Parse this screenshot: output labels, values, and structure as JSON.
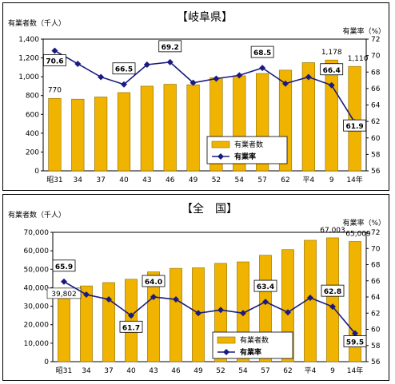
{
  "colors": {
    "bar": "#f0b400",
    "bar_edge": "#8a6a00",
    "line": "#1a1a80",
    "grid": "#000000"
  },
  "chart_data": [
    {
      "type": "bar",
      "title": "【岐阜県】",
      "ylabel": "有業者数（千人）",
      "y2label": "有業率（%）",
      "categories": [
        "昭31",
        "34",
        "37",
        "40",
        "43",
        "46",
        "49",
        "52",
        "54",
        "57",
        "62",
        "平4",
        "9",
        "14年"
      ],
      "ylim": [
        0,
        1400
      ],
      "yticks": [
        "0",
        "200",
        "400",
        "600",
        "800",
        "1,000",
        "1,200",
        "1,400"
      ],
      "y2lim": [
        56,
        72
      ],
      "y2ticks": [
        "56",
        "58",
        "60",
        "62",
        "64",
        "66",
        "68",
        "70",
        "72"
      ],
      "legend_position": "bottom-right",
      "series": [
        {
          "name": "有業者数",
          "type": "bar",
          "axis": "left",
          "values": [
            770,
            762,
            785,
            832,
            900,
            920,
            915,
            990,
            1010,
            1035,
            1070,
            1150,
            1178,
            1110
          ],
          "value_labels": [
            "770",
            "",
            "",
            "",
            "",
            "",
            "",
            "",
            "",
            "",
            "",
            "",
            "1,178",
            "1,110"
          ]
        },
        {
          "name": "有業率",
          "type": "line",
          "axis": "right",
          "values": [
            70.6,
            69.0,
            67.4,
            66.5,
            68.9,
            69.2,
            66.7,
            67.2,
            67.6,
            68.5,
            66.6,
            67.4,
            66.4,
            61.9
          ],
          "value_labels": [
            "70.6",
            "",
            "",
            "66.5",
            "",
            "69.2",
            "",
            "",
            "",
            "68.5",
            "",
            "",
            "66.4",
            "61.9"
          ]
        }
      ]
    },
    {
      "type": "bar",
      "title": "【全　国】",
      "ylabel": "有業者数（千人）",
      "y2label": "有業率（%）",
      "categories": [
        "昭31",
        "34",
        "37",
        "40",
        "43",
        "46",
        "49",
        "52",
        "54",
        "57",
        "62",
        "平4",
        "9",
        "14年"
      ],
      "ylim": [
        0,
        70000
      ],
      "yticks": [
        "0",
        "10,000",
        "20,000",
        "30,000",
        "40,000",
        "50,000",
        "60,000",
        "70,000"
      ],
      "y2lim": [
        56,
        72
      ],
      "y2ticks": [
        "56",
        "58",
        "60",
        "62",
        "64",
        "66",
        "68",
        "70",
        "72"
      ],
      "legend_position": "bottom-right",
      "series": [
        {
          "name": "有業者数",
          "type": "bar",
          "axis": "left",
          "values": [
            39802,
            41000,
            42800,
            44600,
            48600,
            50500,
            50800,
            53200,
            54000,
            57600,
            60600,
            65700,
            67003,
            65009
          ],
          "value_labels": [
            "39,802",
            "",
            "",
            "",
            "",
            "",
            "",
            "",
            "",
            "",
            "",
            "",
            "67,003",
            "65,009"
          ]
        },
        {
          "name": "有業率",
          "type": "line",
          "axis": "right",
          "values": [
            65.9,
            64.3,
            63.7,
            61.7,
            64.0,
            63.7,
            62.0,
            62.4,
            62.0,
            63.4,
            62.1,
            63.9,
            62.8,
            59.5
          ],
          "value_labels": [
            "65.9",
            "",
            "",
            "61.7",
            "64.0",
            "",
            "",
            "",
            "",
            "63.4",
            "",
            "",
            "62.8",
            "59.5"
          ]
        }
      ]
    }
  ]
}
